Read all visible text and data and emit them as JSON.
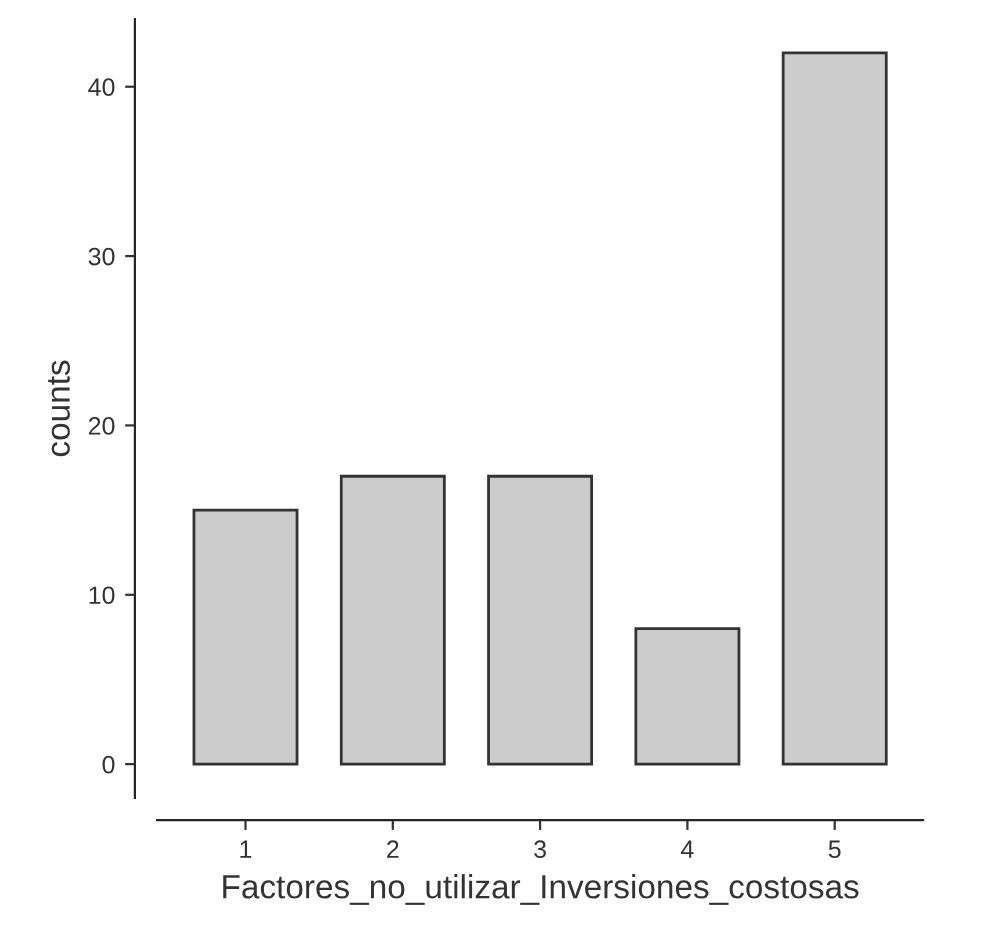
{
  "chart_data": {
    "type": "bar",
    "xlabel": "Factores_no_utilizar_Inversiones_costosas",
    "ylabel": "counts",
    "categories": [
      "1",
      "2",
      "3",
      "4",
      "5"
    ],
    "values": [
      15,
      17,
      17,
      8,
      42
    ],
    "color": "#cccccc",
    "ylim": [
      -2,
      44
    ],
    "yticks": [
      0,
      10,
      20,
      30,
      40
    ],
    "grid": false,
    "legend": false
  }
}
